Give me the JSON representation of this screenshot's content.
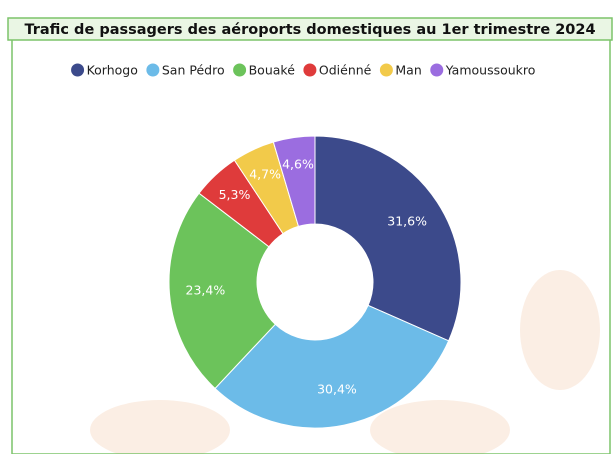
{
  "chart_data": {
    "type": "donut",
    "title": "Trafic de passagers des aéroports domestiques au 1er trimestre 2024",
    "categories": [
      "Korhogo",
      "San Pédro",
      "Bouaké",
      "Odiénné",
      "Man",
      "Yamoussoukro"
    ],
    "values": [
      31.6,
      30.4,
      23.4,
      5.3,
      4.7,
      4.6
    ],
    "value_labels": [
      "31,6%",
      "30,4%",
      "23,4%",
      "5,3%",
      "4,7%",
      "4,6%"
    ],
    "colors": [
      "#3c4a8b",
      "#6cbbe8",
      "#6cc35b",
      "#df3b3b",
      "#f2ca4a",
      "#9b6de0"
    ],
    "legend": "top"
  }
}
